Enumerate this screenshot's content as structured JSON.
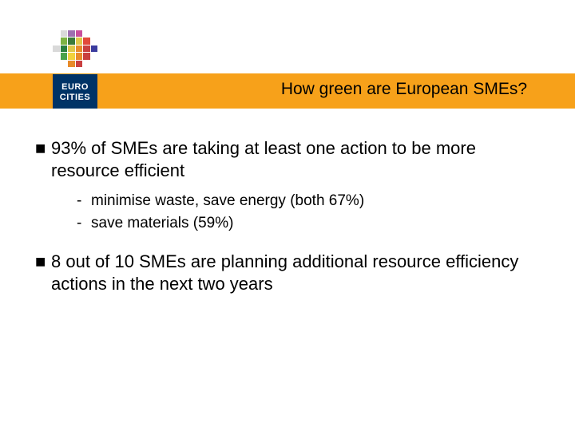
{
  "header": {
    "title_text": "How green are European SMEs?",
    "bar_color": "#f7a11a",
    "title_fontsize": 21,
    "logo_text_line1": "EURO",
    "logo_text_line2": "CITIES",
    "logo_box_bg": "#003366",
    "logo_box_fg": "#ffffff"
  },
  "logo_mosaic": {
    "grid": 6,
    "cells": [
      "#ffffff",
      "#ffffff",
      "#ffffff",
      "#ffffff",
      "#ffffff",
      "#ffffff",
      "#ffffff",
      "#d9d9d9",
      "#9e6fb0",
      "#c94f9b",
      "#ffffff",
      "#ffffff",
      "#ffffff",
      "#7db343",
      "#3b7a3a",
      "#e0c84a",
      "#e24a3b",
      "#ffffff",
      "#d9d9d9",
      "#2a7f3e",
      "#e0c84a",
      "#e88b2a",
      "#c94040",
      "#3b3b9e",
      "#ffffff",
      "#4aa24a",
      "#f2d23c",
      "#e88b2a",
      "#c94040",
      "#ffffff",
      "#ffffff",
      "#ffffff",
      "#e88b2a",
      "#c94040",
      "#ffffff",
      "#ffffff"
    ]
  },
  "bullets": [
    {
      "text": "93% of SMEs are taking at least one action to be more resource efficient",
      "subitems": [
        "minimise waste, save energy (both 67%)",
        "save materials (59%)"
      ]
    },
    {
      "text": "8 out of 10 SMEs are planning additional resource efficiency actions in the next two years",
      "subitems": []
    }
  ],
  "typography": {
    "main_fontsize": 22,
    "sub_fontsize": 19,
    "font_family": "Verdana",
    "text_color": "#000000",
    "background": "#ffffff"
  }
}
